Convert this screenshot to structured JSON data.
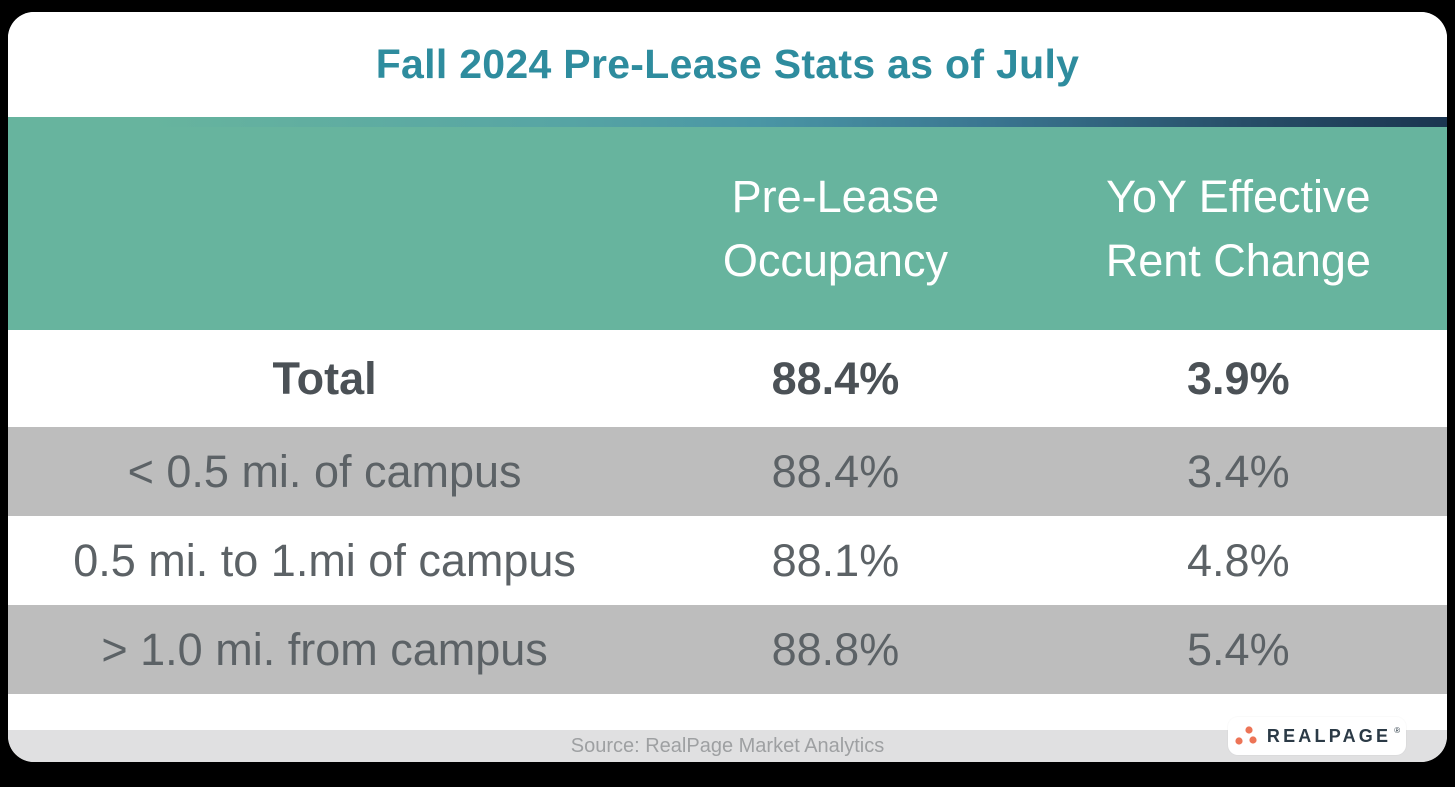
{
  "title": "Fall 2024 Pre-Lease Stats as of July",
  "table": {
    "columns": {
      "occupancy": {
        "line1": "Pre-Lease",
        "line2": "Occupancy"
      },
      "rent_change": {
        "line1": "YoY Effective",
        "line2": "Rent Change"
      }
    },
    "rows": [
      {
        "label": "Total",
        "occupancy": "88.4%",
        "rent_change": "3.9%",
        "emphasis": true,
        "striped": false
      },
      {
        "label": "< 0.5 mi. of campus",
        "occupancy": "88.4%",
        "rent_change": "3.4%",
        "emphasis": false,
        "striped": true
      },
      {
        "label": "0.5 mi. to 1.mi of campus",
        "occupancy": "88.1%",
        "rent_change": "4.8%",
        "emphasis": false,
        "striped": false
      },
      {
        "label": "> 1.0 mi. from campus",
        "occupancy": "88.8%",
        "rent_change": "5.4%",
        "emphasis": false,
        "striped": true
      }
    ]
  },
  "footer": {
    "source": "Source: RealPage Market Analytics"
  },
  "logo": {
    "text": "REALPAGE",
    "trademark": "®"
  },
  "colors": {
    "header_green": "#67b49e",
    "title_teal": "#2e8c9e",
    "row_gray": "#bdbdbd",
    "footer_gray": "#e0e0e1",
    "gradient_end_navy": "#1b3550",
    "logo_orange": "#ed7456",
    "logo_text": "#2b3a46",
    "text_dark": "#4b5156",
    "text_gray": "#5c6266",
    "background": "#000000"
  },
  "chart_data": {
    "type": "table",
    "title": "Fall 2024 Pre-Lease Stats as of July",
    "columns": [
      "",
      "Pre-Lease Occupancy",
      "YoY Effective Rent Change"
    ],
    "rows": [
      [
        "Total",
        "88.4%",
        "3.9%"
      ],
      [
        "< 0.5 mi. of campus",
        "88.4%",
        "3.4%"
      ],
      [
        "0.5 mi. to 1.mi of campus",
        "88.1%",
        "4.8%"
      ],
      [
        "> 1.0 mi. from campus",
        "88.8%",
        "5.4%"
      ]
    ],
    "values_numeric": {
      "pre_lease_occupancy_pct": [
        88.4,
        88.4,
        88.1,
        88.8
      ],
      "yoy_effective_rent_change_pct": [
        3.9,
        3.4,
        4.8,
        5.4
      ]
    },
    "source": "Source: RealPage Market Analytics"
  }
}
